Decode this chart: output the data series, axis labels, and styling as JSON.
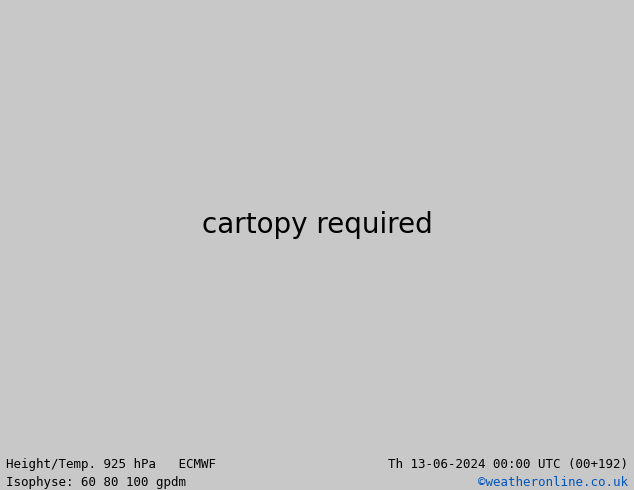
{
  "title_left_line1": "Height/Temp. 925 hPa   ECMWF",
  "title_left_line2": "Isophyse: 60 80 100 gpdm",
  "title_right_line1": "Th 13-06-2024 00:00 UTC (00+192)",
  "title_right_line2": "©weatheronline.co.uk",
  "title_right_line2_color": "#0055bb",
  "bg_color": "#c8c8c8",
  "map_bg_color": "#d2d2d2",
  "green_fill_color": "#aae8aa",
  "bottom_bar_color": "#ffffff",
  "text_color": "#000000",
  "font_size_title": 9,
  "figsize": [
    6.34,
    4.9
  ],
  "dpi": 100
}
